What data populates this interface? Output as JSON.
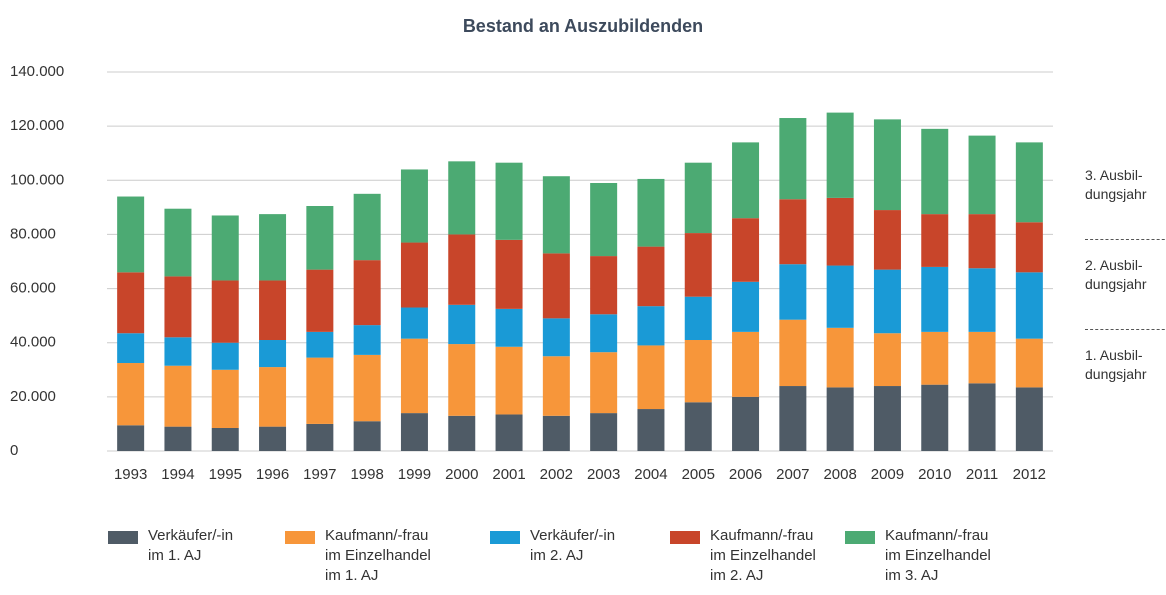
{
  "chart_data": {
    "type": "stacked_bar",
    "title": "Bestand an Auszubildenden",
    "categories": [
      "1993",
      "1994",
      "1995",
      "1996",
      "1997",
      "1998",
      "1999",
      "2000",
      "2001",
      "2002",
      "2003",
      "2004",
      "2005",
      "2006",
      "2007",
      "2008",
      "2009",
      "2010",
      "2011",
      "2012"
    ],
    "series": [
      {
        "name": "Verkäufer/-in\nim 1. AJ",
        "color": "#4f5b66",
        "values": [
          9500,
          9000,
          8500,
          9000,
          10000,
          11000,
          14000,
          13000,
          13500,
          13000,
          14000,
          15500,
          18000,
          20000,
          24000,
          23500,
          24000,
          24500,
          25000,
          23500
        ]
      },
      {
        "name": "Kaufmann/-frau\nim Einzelhandel\nim 1. AJ",
        "color": "#f7963a",
        "values": [
          23000,
          22500,
          21500,
          22000,
          24500,
          24500,
          27500,
          26500,
          25000,
          22000,
          22500,
          23500,
          23000,
          24000,
          24500,
          22000,
          19500,
          19500,
          19000,
          18000
        ]
      },
      {
        "name": "Verkäufer/-in\nim 2. AJ",
        "color": "#1a9ad6",
        "values": [
          11000,
          10500,
          10000,
          10000,
          9500,
          11000,
          11500,
          14500,
          14000,
          14000,
          14000,
          14500,
          16000,
          18500,
          20500,
          23000,
          23500,
          24000,
          23500,
          24500
        ]
      },
      {
        "name": "Kaufmann/-frau\nim Einzelhandel\nim 2. AJ",
        "color": "#c8452a",
        "values": [
          22500,
          22500,
          23000,
          22000,
          23000,
          24000,
          24000,
          26000,
          25500,
          24000,
          21500,
          22000,
          23500,
          23500,
          24000,
          25000,
          22000,
          19500,
          20000,
          18500
        ]
      },
      {
        "name": "Kaufmann/-frau\nim Einzelhandel\nim 3. AJ",
        "color": "#4caa73",
        "values": [
          28000,
          25000,
          24000,
          24500,
          23500,
          24500,
          27000,
          27000,
          28500,
          28500,
          27000,
          25000,
          26000,
          28000,
          30000,
          31500,
          33500,
          31500,
          29000,
          29500
        ]
      }
    ],
    "ylim": [
      0,
      140000
    ],
    "yticks": [
      0,
      {
        "value": 20000,
        "label": "20.000"
      },
      {
        "value": 40000,
        "label": "40.000"
      },
      {
        "value": 60000,
        "label": "60.000"
      },
      {
        "value": 80000,
        "label": "80.000"
      },
      {
        "value": 100000,
        "label": "100.000"
      },
      {
        "value": 120000,
        "label": "120.000"
      },
      {
        "value": 140000,
        "label": "140.000"
      }
    ],
    "grid": true,
    "annotations": [
      "3. Ausbil-\ndungsjahr",
      "2. Ausbil-\ndungsjahr",
      "1. Ausbil-\ndungsjahr"
    ]
  }
}
